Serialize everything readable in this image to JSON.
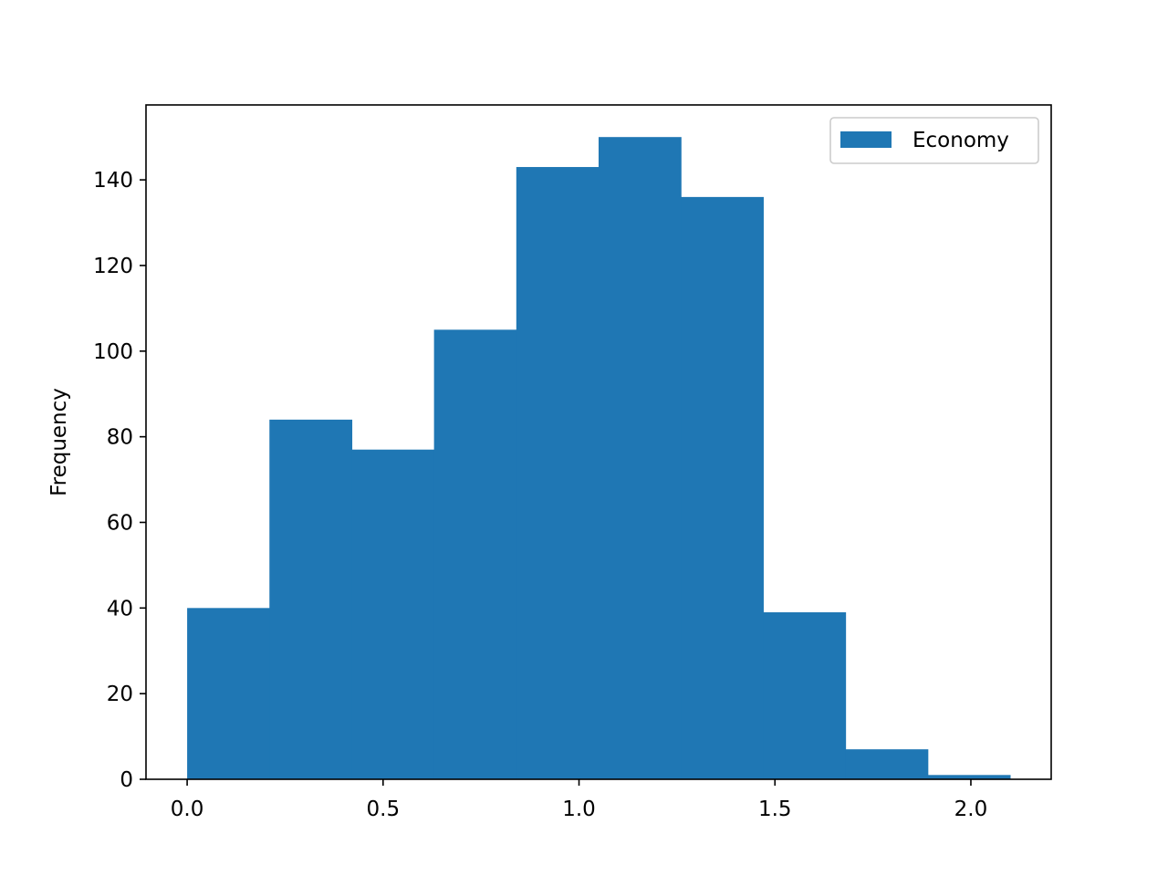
{
  "chart_data": {
    "type": "bar",
    "title": "",
    "xlabel": "",
    "ylabel": "Frequency",
    "bin_edges": [
      0.0,
      0.21,
      0.42,
      0.63,
      0.84,
      1.05,
      1.26,
      1.47,
      1.68,
      1.89,
      2.1
    ],
    "values": [
      40,
      84,
      77,
      105,
      143,
      150,
      136,
      39,
      7,
      1
    ],
    "xlim": [
      -0.105,
      2.205
    ],
    "ylim": [
      0,
      157.5
    ],
    "xticks": [
      0.0,
      0.5,
      1.0,
      1.5,
      2.0
    ],
    "xtick_labels": [
      "0.0",
      "0.5",
      "1.0",
      "1.5",
      "2.0"
    ],
    "yticks": [
      0,
      20,
      40,
      60,
      80,
      100,
      120,
      140
    ],
    "ytick_labels": [
      "0",
      "20",
      "40",
      "60",
      "80",
      "100",
      "120",
      "140"
    ],
    "grid": false,
    "legend": {
      "position": "top-right",
      "entries": [
        "Economy"
      ]
    },
    "series": [
      {
        "name": "Economy",
        "color": "#1f77b4"
      }
    ]
  }
}
